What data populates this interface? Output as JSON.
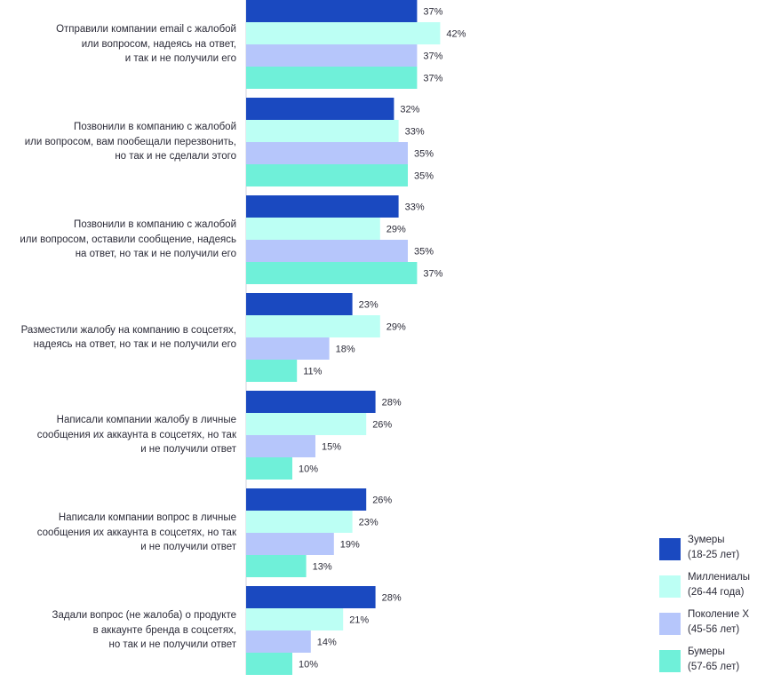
{
  "chart_data": {
    "type": "bar",
    "orientation": "horizontal",
    "value_suffix": "%",
    "categories": [
      [
        "Отправили компании email с жалобой",
        "или вопросом, надеясь на ответ,",
        "и так и не получили его"
      ],
      [
        "Позвонили в компанию с жалобой",
        "или вопросом, вам пообещали перезвонить,",
        "но так и не сделали этого"
      ],
      [
        "Позвонили в компанию с жалобой",
        "или вопросом, оставили сообщение, надеясь",
        "на ответ, но так и не получили его"
      ],
      [
        "Разместили жалобу на компанию в соцсетях,",
        "надеясь на ответ, но так и не получили его"
      ],
      [
        "Написали компании жалобу в личные",
        "сообщения их аккаунта в соцсетях, но так",
        "и не получили ответ"
      ],
      [
        "Написали компании вопрос в личные",
        "сообщения их аккаунта в соцсетях, но так",
        "и не получили ответ"
      ],
      [
        "Задали вопрос (не жалоба) о продукте",
        "в аккаунте бренда в соцсетях,",
        "но так и не получили ответ"
      ]
    ],
    "series": [
      {
        "name": "Зумеры",
        "name_sub": "(18-25 лет)",
        "color": "#1a49c0",
        "values": [
          37,
          32,
          33,
          23,
          28,
          26,
          28
        ]
      },
      {
        "name": "Миллениалы",
        "name_sub": "(26-44 года)",
        "color": "#bcfff4",
        "values": [
          42,
          33,
          29,
          29,
          26,
          23,
          21
        ]
      },
      {
        "name": "Поколение X",
        "name_sub": "(45-56 лет)",
        "color": "#b6c6fb",
        "values": [
          37,
          35,
          35,
          18,
          15,
          19,
          14
        ]
      },
      {
        "name": "Бумеры",
        "name_sub": "(57-65 лет)",
        "color": "#6ff0d9",
        "values": [
          37,
          35,
          37,
          11,
          10,
          13,
          10
        ]
      }
    ],
    "legend_position": "bottom-right",
    "grid": false
  }
}
